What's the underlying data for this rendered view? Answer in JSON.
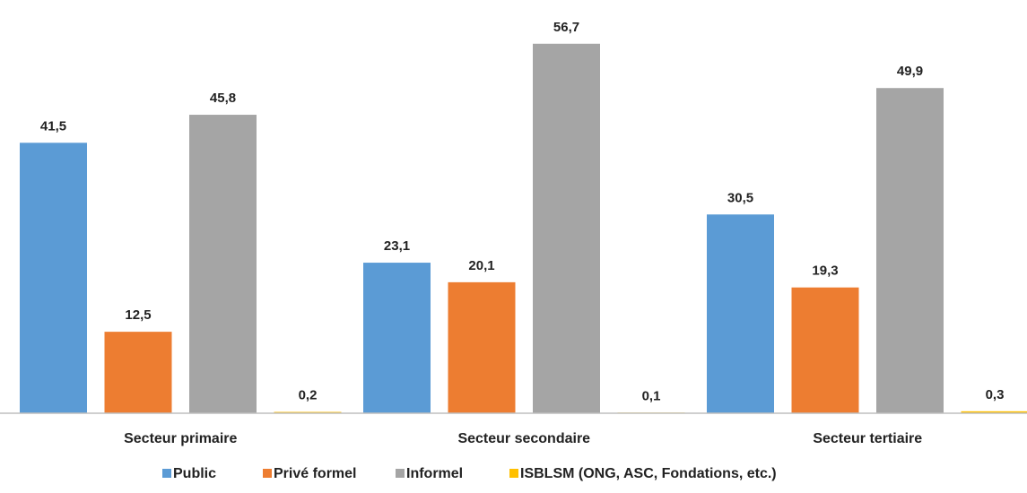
{
  "chart_data": {
    "type": "bar",
    "categories": [
      "Secteur primaire",
      "Secteur secondaire",
      "Secteur tertiaire"
    ],
    "series": [
      {
        "name": "Public",
        "color": "#5b9bd5",
        "values": [
          41.5,
          23.1,
          30.5
        ],
        "labels": [
          "41,5",
          "23,1",
          "30,5"
        ]
      },
      {
        "name": "Privé formel",
        "color": "#ed7d31",
        "values": [
          12.5,
          20.1,
          19.3
        ],
        "labels": [
          "12,5",
          "20,1",
          "19,3"
        ]
      },
      {
        "name": "Informel",
        "color": "#a5a5a5",
        "values": [
          45.8,
          56.7,
          49.9
        ],
        "labels": [
          "45,8",
          "56,7",
          "49,9"
        ]
      },
      {
        "name": "ISBLSM (ONG, ASC, Fondations, etc.)",
        "color": "#ffc000",
        "values": [
          0.2,
          0.1,
          0.3
        ],
        "labels": [
          "0,2",
          "0,1",
          "0,3"
        ]
      }
    ],
    "title": "",
    "xlabel": "",
    "ylabel": "",
    "ylim": [
      0,
      60
    ],
    "grid": false,
    "legend_position": "bottom"
  }
}
